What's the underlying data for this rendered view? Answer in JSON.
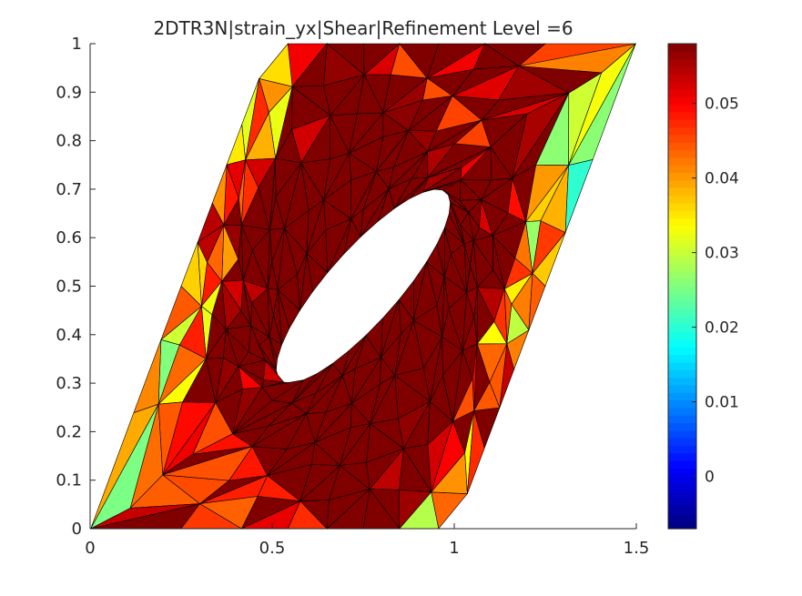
{
  "chart_data": {
    "type": "heatmap",
    "title": "2DTR3N|strain_yx|Shear|Refinement Level =6",
    "xlabel": "",
    "ylabel": "",
    "xlim": [
      0,
      1.5
    ],
    "ylim": [
      0,
      1
    ],
    "xticks": [
      0,
      0.5,
      1,
      1.5
    ],
    "xtick_labels": [
      "0",
      "0.5",
      "1",
      "1.5"
    ],
    "yticks": [
      0,
      0.1,
      0.2,
      0.3,
      0.4,
      0.5,
      0.6,
      0.7,
      0.8,
      0.9,
      1
    ],
    "ytick_labels": [
      "0",
      "0.1",
      "0.2",
      "0.3",
      "0.4",
      "0.5",
      "0.6",
      "0.7",
      "0.8",
      "0.9",
      "1"
    ],
    "colormap": "jet",
    "clim": [
      -0.007,
      0.058
    ],
    "colorbar_ticks": [
      0,
      0.01,
      0.02,
      0.03,
      0.04,
      0.05
    ],
    "colorbar_tick_labels": [
      "0",
      "0.01",
      "0.02",
      "0.03",
      "0.04",
      "0.05"
    ],
    "mesh": {
      "element": "triangle",
      "domain_corners": [
        [
          0,
          0
        ],
        [
          1,
          0
        ],
        [
          1.5,
          1
        ],
        [
          0.5,
          1
        ]
      ],
      "hole_ellipse": {
        "center": [
          0.75,
          0.5
        ],
        "semi_major": 0.3,
        "semi_minor": 0.085,
        "angle_deg": 39
      },
      "rings": 6,
      "angular_segments": 32,
      "field": "strain_yx",
      "value_range": [
        -0.007,
        0.058
      ]
    },
    "grid": false,
    "legend": "colorbar-right"
  }
}
